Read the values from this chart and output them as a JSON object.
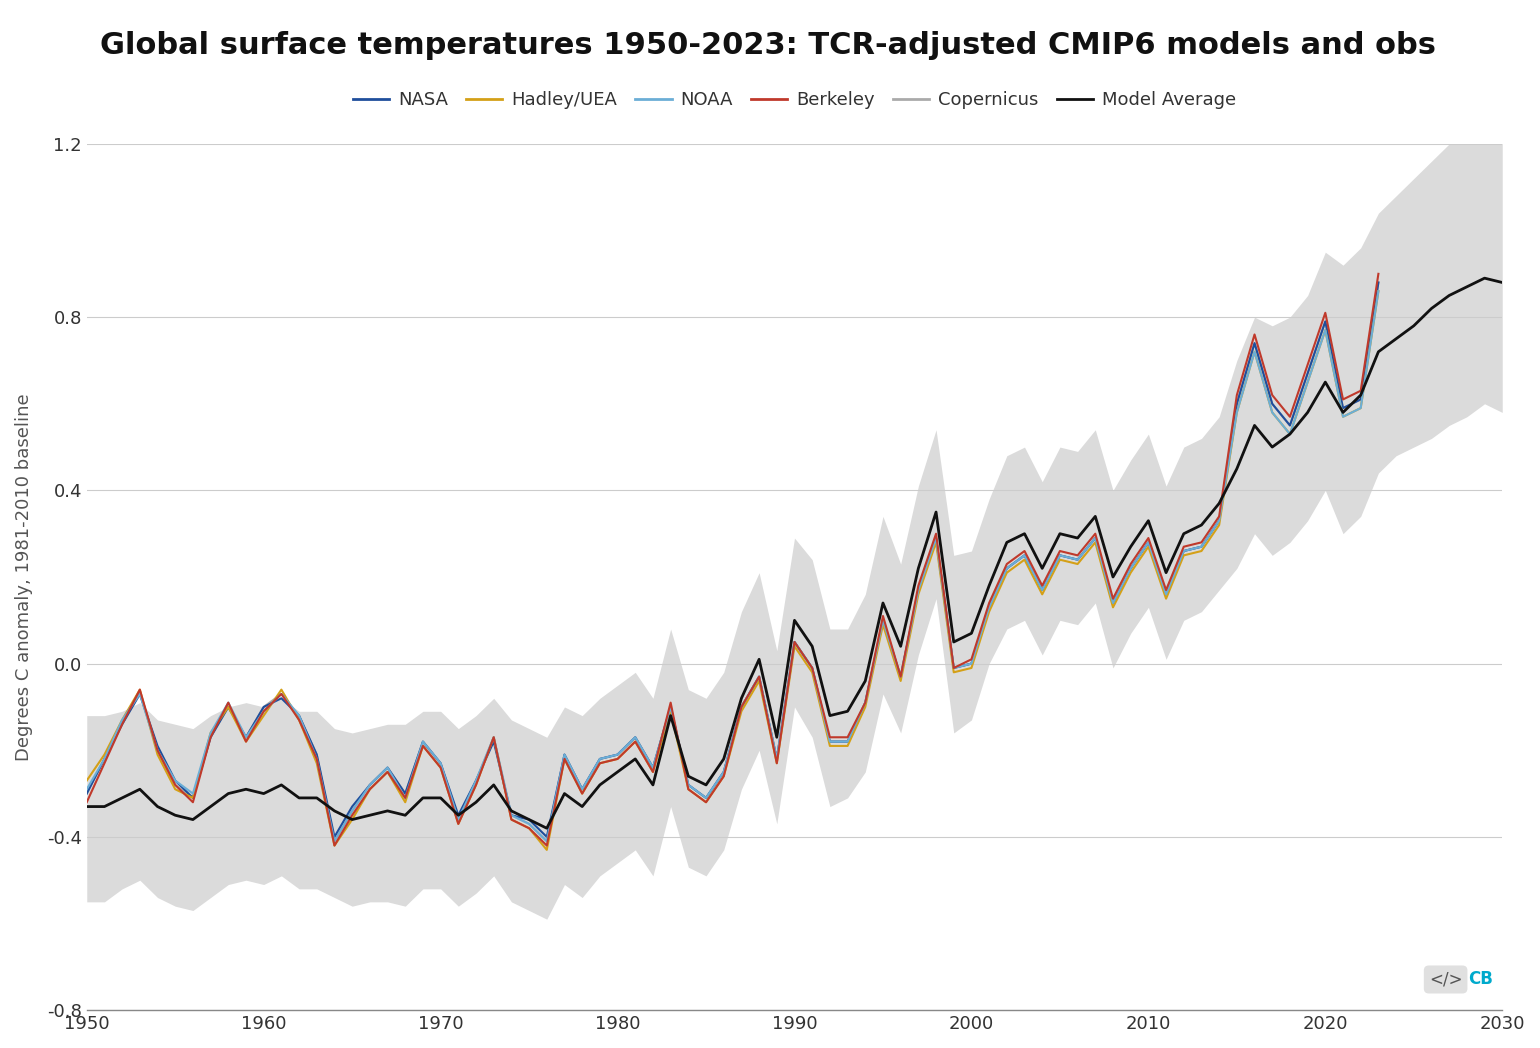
{
  "title": "Global surface temperatures 1950-2023: TCR-adjusted CMIP6 models and obs",
  "ylabel": "Degrees C anomaly, 1981-2010 baseline",
  "xlim": [
    1950,
    2030
  ],
  "ylim": [
    -0.8,
    1.2
  ],
  "yticks": [
    -0.8,
    -0.4,
    0.0,
    0.4,
    0.8,
    1.2
  ],
  "xticks": [
    1950,
    1960,
    1970,
    1980,
    1990,
    2000,
    2010,
    2020,
    2030
  ],
  "background_color": "#ffffff",
  "grid_color": "#cccccc",
  "title_fontsize": 22,
  "axis_fontsize": 13,
  "legend_fontsize": 13,
  "colors": {
    "NASA": "#1f4e9c",
    "HadleyUEA": "#d4a017",
    "NOAA": "#6baed6",
    "Berkeley": "#c0392b",
    "Copernicus": "#aaaaaa",
    "ModelAverage": "#111111",
    "ModelShade": "#cccccc"
  },
  "years_obs": [
    1950,
    1951,
    1952,
    1953,
    1954,
    1955,
    1956,
    1957,
    1958,
    1959,
    1960,
    1961,
    1962,
    1963,
    1964,
    1965,
    1966,
    1967,
    1968,
    1969,
    1970,
    1971,
    1972,
    1973,
    1974,
    1975,
    1976,
    1977,
    1978,
    1979,
    1980,
    1981,
    1982,
    1983,
    1984,
    1985,
    1986,
    1987,
    1988,
    1989,
    1990,
    1991,
    1992,
    1993,
    1994,
    1995,
    1996,
    1997,
    1998,
    1999,
    2000,
    2001,
    2002,
    2003,
    2004,
    2005,
    2006,
    2007,
    2008,
    2009,
    2010,
    2011,
    2012,
    2013,
    2014,
    2015,
    2016,
    2017,
    2018,
    2019,
    2020,
    2021,
    2022,
    2023
  ],
  "NASA": [
    -0.3,
    -0.22,
    -0.14,
    -0.07,
    -0.19,
    -0.27,
    -0.31,
    -0.17,
    -0.1,
    -0.17,
    -0.1,
    -0.08,
    -0.12,
    -0.21,
    -0.4,
    -0.33,
    -0.28,
    -0.24,
    -0.3,
    -0.18,
    -0.23,
    -0.35,
    -0.27,
    -0.18,
    -0.35,
    -0.36,
    -0.4,
    -0.21,
    -0.29,
    -0.22,
    -0.21,
    -0.17,
    -0.24,
    -0.1,
    -0.28,
    -0.31,
    -0.25,
    -0.1,
    -0.03,
    -0.22,
    0.05,
    -0.01,
    -0.18,
    -0.18,
    -0.09,
    0.1,
    -0.03,
    0.17,
    0.29,
    -0.01,
    0.0,
    0.13,
    0.22,
    0.25,
    0.17,
    0.25,
    0.24,
    0.29,
    0.14,
    0.22,
    0.28,
    0.16,
    0.26,
    0.27,
    0.33,
    0.6,
    0.74,
    0.6,
    0.55,
    0.67,
    0.79,
    0.59,
    0.61,
    0.88
  ],
  "HadleyUEA": [
    -0.27,
    -0.21,
    -0.13,
    -0.06,
    -0.21,
    -0.29,
    -0.31,
    -0.16,
    -0.1,
    -0.18,
    -0.12,
    -0.06,
    -0.13,
    -0.23,
    -0.42,
    -0.36,
    -0.29,
    -0.25,
    -0.32,
    -0.19,
    -0.24,
    -0.37,
    -0.28,
    -0.17,
    -0.36,
    -0.38,
    -0.43,
    -0.22,
    -0.3,
    -0.23,
    -0.22,
    -0.18,
    -0.25,
    -0.11,
    -0.29,
    -0.32,
    -0.26,
    -0.11,
    -0.04,
    -0.23,
    0.04,
    -0.02,
    -0.19,
    -0.19,
    -0.1,
    0.09,
    -0.04,
    0.16,
    0.28,
    -0.02,
    -0.01,
    0.12,
    0.21,
    0.24,
    0.16,
    0.24,
    0.23,
    0.28,
    0.13,
    0.21,
    0.27,
    0.15,
    0.25,
    0.26,
    0.32,
    0.58,
    0.72,
    0.58,
    0.53,
    0.65,
    0.77,
    0.57,
    0.59,
    0.86
  ],
  "NOAA": [
    -0.29,
    -0.22,
    -0.13,
    -0.07,
    -0.2,
    -0.27,
    -0.3,
    -0.16,
    -0.09,
    -0.17,
    -0.11,
    -0.07,
    -0.12,
    -0.22,
    -0.41,
    -0.34,
    -0.28,
    -0.24,
    -0.31,
    -0.18,
    -0.23,
    -0.36,
    -0.27,
    -0.17,
    -0.35,
    -0.37,
    -0.41,
    -0.21,
    -0.29,
    -0.22,
    -0.21,
    -0.17,
    -0.24,
    -0.1,
    -0.28,
    -0.31,
    -0.25,
    -0.1,
    -0.03,
    -0.22,
    0.05,
    -0.01,
    -0.18,
    -0.18,
    -0.09,
    0.1,
    -0.03,
    0.17,
    0.29,
    -0.01,
    0.0,
    0.13,
    0.22,
    0.25,
    0.17,
    0.25,
    0.24,
    0.29,
    0.14,
    0.22,
    0.28,
    0.16,
    0.26,
    0.27,
    0.33,
    0.58,
    0.72,
    0.58,
    0.53,
    0.65,
    0.77,
    0.57,
    0.59,
    0.86
  ],
  "Berkeley": [
    -0.32,
    -0.23,
    -0.14,
    -0.06,
    -0.2,
    -0.28,
    -0.32,
    -0.17,
    -0.09,
    -0.18,
    -0.11,
    -0.07,
    -0.13,
    -0.22,
    -0.42,
    -0.35,
    -0.29,
    -0.25,
    -0.31,
    -0.19,
    -0.24,
    -0.37,
    -0.28,
    -0.17,
    -0.36,
    -0.38,
    -0.42,
    -0.22,
    -0.3,
    -0.23,
    -0.22,
    -0.18,
    -0.25,
    -0.09,
    -0.29,
    -0.32,
    -0.26,
    -0.1,
    -0.03,
    -0.23,
    0.05,
    -0.01,
    -0.17,
    -0.17,
    -0.09,
    0.11,
    -0.03,
    0.18,
    0.3,
    -0.01,
    0.01,
    0.14,
    0.23,
    0.26,
    0.18,
    0.26,
    0.25,
    0.3,
    0.15,
    0.23,
    0.29,
    0.17,
    0.27,
    0.28,
    0.34,
    0.62,
    0.76,
    0.62,
    0.57,
    0.69,
    0.81,
    0.61,
    0.63,
    0.9
  ],
  "Copernicus": [
    -0.3,
    -0.22,
    -0.14,
    -0.07,
    -0.2,
    -0.28,
    -0.31,
    -0.17,
    -0.1,
    -0.17,
    -0.1,
    -0.07,
    -0.12,
    -0.21,
    -0.41,
    -0.34,
    -0.28,
    -0.24,
    -0.3,
    -0.18,
    -0.23,
    -0.36,
    -0.27,
    -0.17,
    -0.35,
    -0.37,
    -0.41,
    -0.21,
    -0.29,
    -0.22,
    -0.21,
    -0.17,
    -0.24,
    -0.1,
    -0.28,
    -0.31,
    -0.25,
    -0.1,
    -0.03,
    -0.22,
    0.05,
    -0.01,
    -0.18,
    -0.18,
    -0.09,
    0.1,
    -0.03,
    0.17,
    0.29,
    -0.01,
    0.0,
    0.13,
    0.22,
    0.25,
    0.17,
    0.25,
    0.24,
    0.29,
    0.14,
    0.22,
    0.28,
    0.16,
    0.26,
    0.27,
    0.33,
    0.6,
    0.74,
    0.6,
    0.55,
    0.67,
    0.79,
    0.59,
    0.61,
    0.88
  ],
  "years_model": [
    1950,
    1951,
    1952,
    1953,
    1954,
    1955,
    1956,
    1957,
    1958,
    1959,
    1960,
    1961,
    1962,
    1963,
    1964,
    1965,
    1966,
    1967,
    1968,
    1969,
    1970,
    1971,
    1972,
    1973,
    1974,
    1975,
    1976,
    1977,
    1978,
    1979,
    1980,
    1981,
    1982,
    1983,
    1984,
    1985,
    1986,
    1987,
    1988,
    1989,
    1990,
    1991,
    1992,
    1993,
    1994,
    1995,
    1996,
    1997,
    1998,
    1999,
    2000,
    2001,
    2002,
    2003,
    2004,
    2005,
    2006,
    2007,
    2008,
    2009,
    2010,
    2011,
    2012,
    2013,
    2014,
    2015,
    2016,
    2017,
    2018,
    2019,
    2020,
    2021,
    2022,
    2023,
    2024,
    2025,
    2026,
    2027,
    2028,
    2029,
    2030
  ],
  "model_mean": [
    -0.33,
    -0.33,
    -0.31,
    -0.29,
    -0.33,
    -0.35,
    -0.36,
    -0.33,
    -0.3,
    -0.29,
    -0.3,
    -0.28,
    -0.31,
    -0.31,
    -0.34,
    -0.36,
    -0.35,
    -0.34,
    -0.35,
    -0.31,
    -0.31,
    -0.35,
    -0.32,
    -0.28,
    -0.34,
    -0.36,
    -0.38,
    -0.3,
    -0.33,
    -0.28,
    -0.25,
    -0.22,
    -0.28,
    -0.12,
    -0.26,
    -0.28,
    -0.22,
    -0.08,
    0.01,
    -0.17,
    0.1,
    0.04,
    -0.12,
    -0.11,
    -0.04,
    0.14,
    0.04,
    0.22,
    0.35,
    0.05,
    0.07,
    0.18,
    0.28,
    0.3,
    0.22,
    0.3,
    0.29,
    0.34,
    0.2,
    0.27,
    0.33,
    0.21,
    0.3,
    0.32,
    0.37,
    0.45,
    0.55,
    0.5,
    0.53,
    0.58,
    0.65,
    0.58,
    0.62,
    0.72,
    0.75,
    0.78,
    0.82,
    0.85,
    0.87,
    0.89,
    0.88
  ],
  "model_upper": [
    -0.12,
    -0.12,
    -0.11,
    -0.09,
    -0.13,
    -0.14,
    -0.15,
    -0.12,
    -0.1,
    -0.09,
    -0.1,
    -0.08,
    -0.11,
    -0.11,
    -0.15,
    -0.16,
    -0.15,
    -0.14,
    -0.14,
    -0.11,
    -0.11,
    -0.15,
    -0.12,
    -0.08,
    -0.13,
    -0.15,
    -0.17,
    -0.1,
    -0.12,
    -0.08,
    -0.05,
    -0.02,
    -0.08,
    0.08,
    -0.06,
    -0.08,
    -0.02,
    0.12,
    0.21,
    0.03,
    0.29,
    0.24,
    0.08,
    0.08,
    0.16,
    0.34,
    0.23,
    0.41,
    0.54,
    0.25,
    0.26,
    0.38,
    0.48,
    0.5,
    0.42,
    0.5,
    0.49,
    0.54,
    0.4,
    0.47,
    0.53,
    0.41,
    0.5,
    0.52,
    0.57,
    0.7,
    0.8,
    0.78,
    0.8,
    0.85,
    0.95,
    0.92,
    0.96,
    1.04,
    1.08,
    1.12,
    1.16,
    1.2,
    1.22,
    1.24,
    1.22
  ],
  "model_lower": [
    -0.55,
    -0.55,
    -0.52,
    -0.5,
    -0.54,
    -0.56,
    -0.57,
    -0.54,
    -0.51,
    -0.5,
    -0.51,
    -0.49,
    -0.52,
    -0.52,
    -0.54,
    -0.56,
    -0.55,
    -0.55,
    -0.56,
    -0.52,
    -0.52,
    -0.56,
    -0.53,
    -0.49,
    -0.55,
    -0.57,
    -0.59,
    -0.51,
    -0.54,
    -0.49,
    -0.46,
    -0.43,
    -0.49,
    -0.33,
    -0.47,
    -0.49,
    -0.43,
    -0.29,
    -0.2,
    -0.37,
    -0.1,
    -0.17,
    -0.33,
    -0.31,
    -0.25,
    -0.07,
    -0.16,
    0.02,
    0.15,
    -0.16,
    -0.13,
    0.0,
    0.08,
    0.1,
    0.02,
    0.1,
    0.09,
    0.14,
    -0.01,
    0.07,
    0.13,
    0.01,
    0.1,
    0.12,
    0.17,
    0.22,
    0.3,
    0.25,
    0.28,
    0.33,
    0.4,
    0.3,
    0.34,
    0.44,
    0.48,
    0.5,
    0.52,
    0.55,
    0.57,
    0.6,
    0.58
  ]
}
